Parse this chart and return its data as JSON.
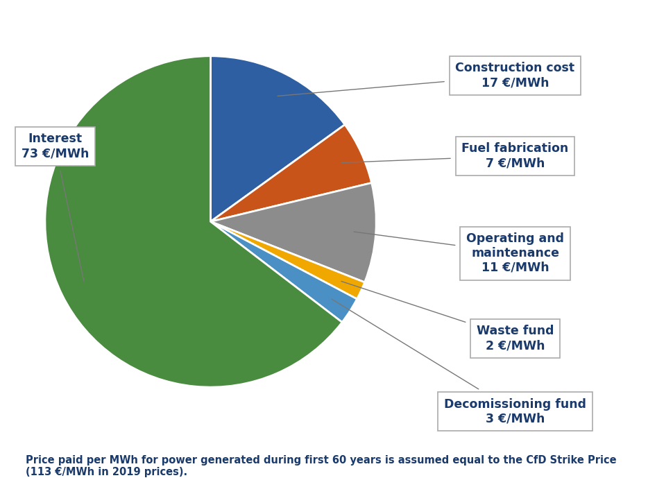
{
  "slices": [
    {
      "label": "Construction cost\n17 €/MWh",
      "value": 17,
      "color": "#2e5fa3"
    },
    {
      "label": "Fuel fabrication\n7 €/MWh",
      "value": 7,
      "color": "#c9541a"
    },
    {
      "label": "Operating and\nmaintenance\n11 €/MWh",
      "value": 11,
      "color": "#8c8c8c"
    },
    {
      "label": "Waste fund\n2 €/MWh",
      "value": 2,
      "color": "#f0a800"
    },
    {
      "label": "Decomissioning fund\n3 €/MWh",
      "value": 3,
      "color": "#4a90c4"
    },
    {
      "label": "Interest\n73 €/MWh",
      "value": 73,
      "color": "#4a8c3f"
    }
  ],
  "startangle": 90,
  "annotation_text_color": "#1a3a6b",
  "box_edge_color": "#aaaaaa",
  "footnote": "Price paid per MWh for power generated during first 60 years is assumed equal to the CfD Strike Price\n(113 €/MWh in 2019 prices).",
  "background_color": "#ffffff",
  "label_fontsize": 12.5,
  "footnote_fontsize": 10.5
}
